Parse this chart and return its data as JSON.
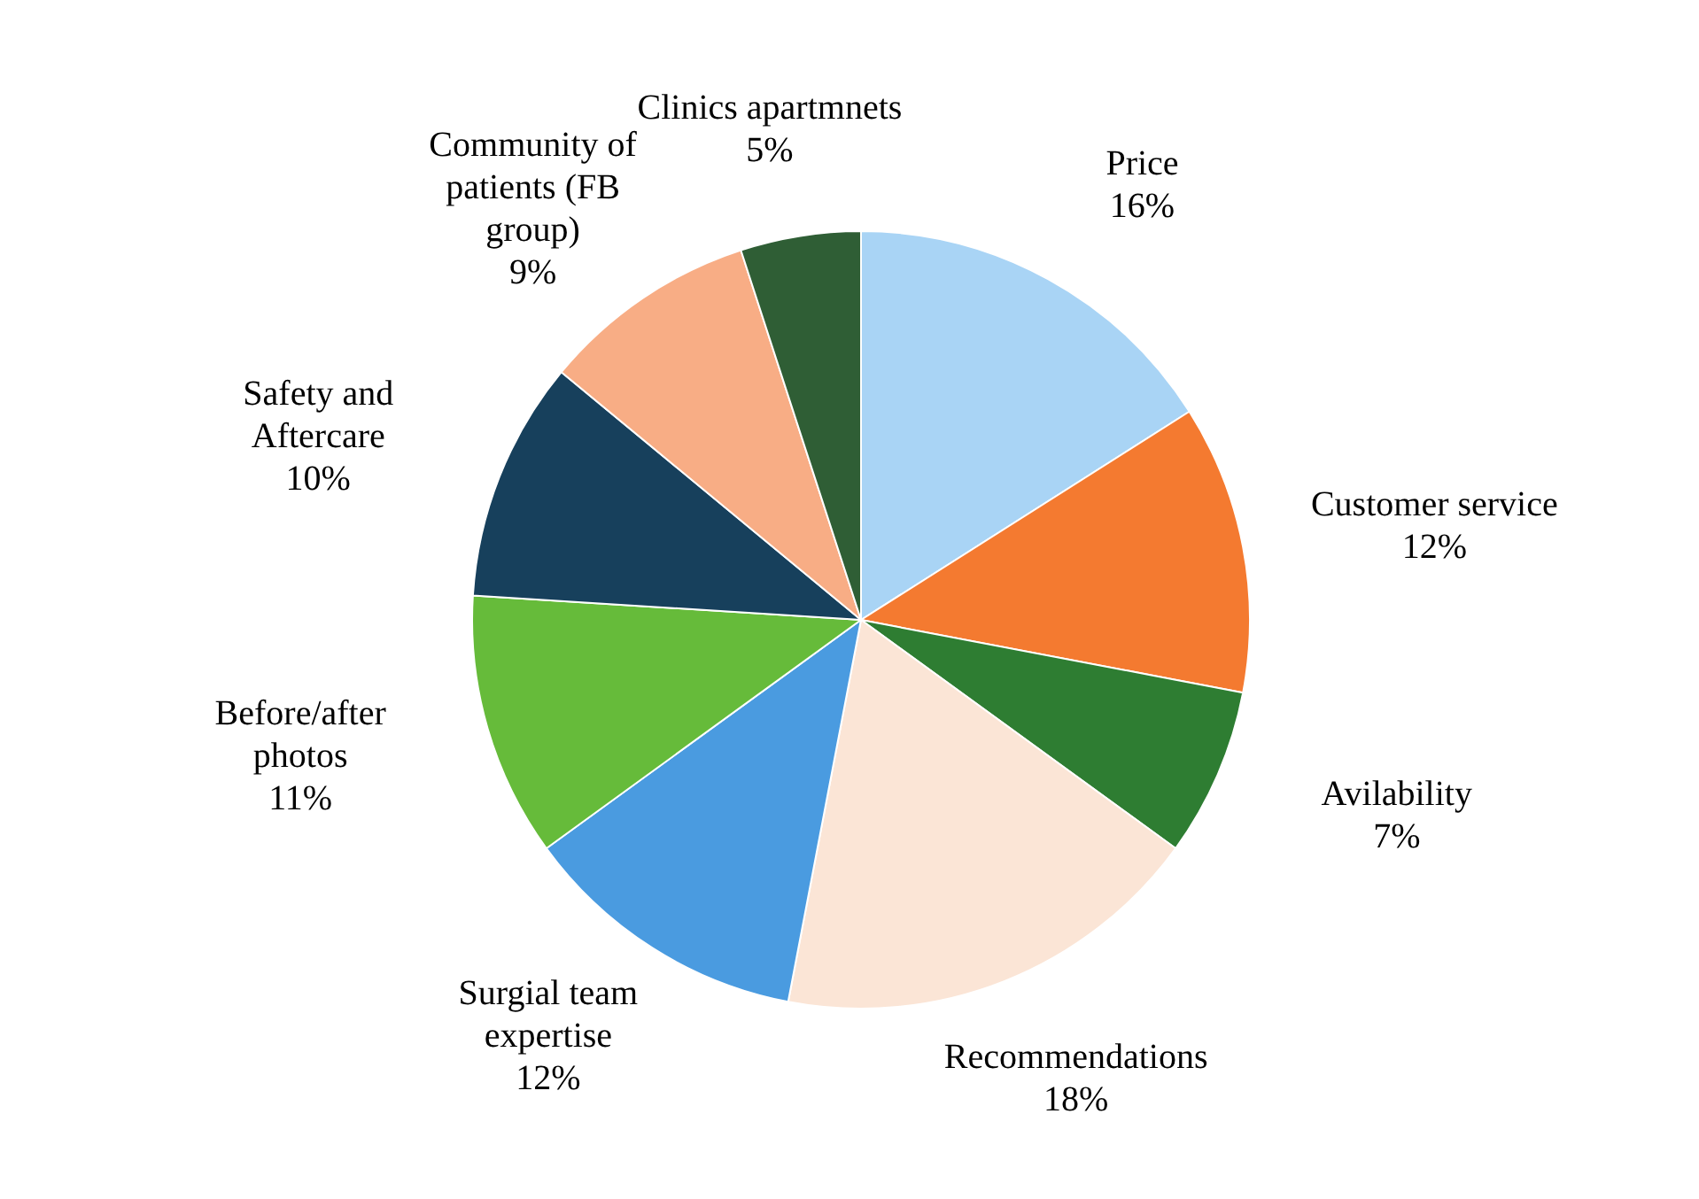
{
  "chart_data": {
    "type": "pie",
    "categories": [
      "Price",
      "Customer service",
      "Avilability",
      "Recommendations",
      "Surgial team expertise",
      "Before/after photos",
      "Safety and Aftercare",
      "Community of patients (FB group)",
      "Clinics apartmnets"
    ],
    "values": [
      16,
      12,
      7,
      18,
      12,
      11,
      10,
      9,
      5
    ],
    "value_labels": [
      "16%",
      "12%",
      "7%",
      "18%",
      "12%",
      "11%",
      "10%",
      "9%",
      "5%"
    ],
    "colors": [
      "#a9d4f5",
      "#f47a30",
      "#2e7d32",
      "#fbe5d6",
      "#4a9be0",
      "#66bb3a",
      "#17405c",
      "#f8ad85",
      "#2f5e35"
    ]
  }
}
